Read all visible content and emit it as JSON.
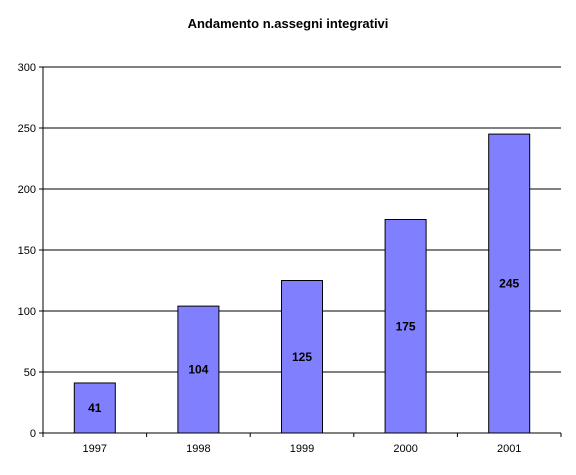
{
  "chart_data": {
    "type": "bar",
    "title": "Andamento n.assegni integrativi",
    "xlabel": "",
    "ylabel": "",
    "categories": [
      "1997",
      "1998",
      "1999",
      "2000",
      "2001"
    ],
    "values": [
      41,
      104,
      125,
      175,
      245
    ],
    "data_labels": [
      "41",
      "104",
      "125",
      "175",
      "245"
    ],
    "ylim": [
      0,
      300
    ],
    "yticks": [
      0,
      50,
      100,
      150,
      200,
      250,
      300
    ],
    "ytick_labels": [
      "0",
      "50",
      "100",
      "150",
      "200",
      "250",
      "300"
    ],
    "grid": true,
    "legend": "none",
    "colors": {
      "bar_fill": "#8080ff",
      "bar_stroke": "#000000",
      "gridline": "#000000",
      "background": "#ffffff"
    }
  }
}
